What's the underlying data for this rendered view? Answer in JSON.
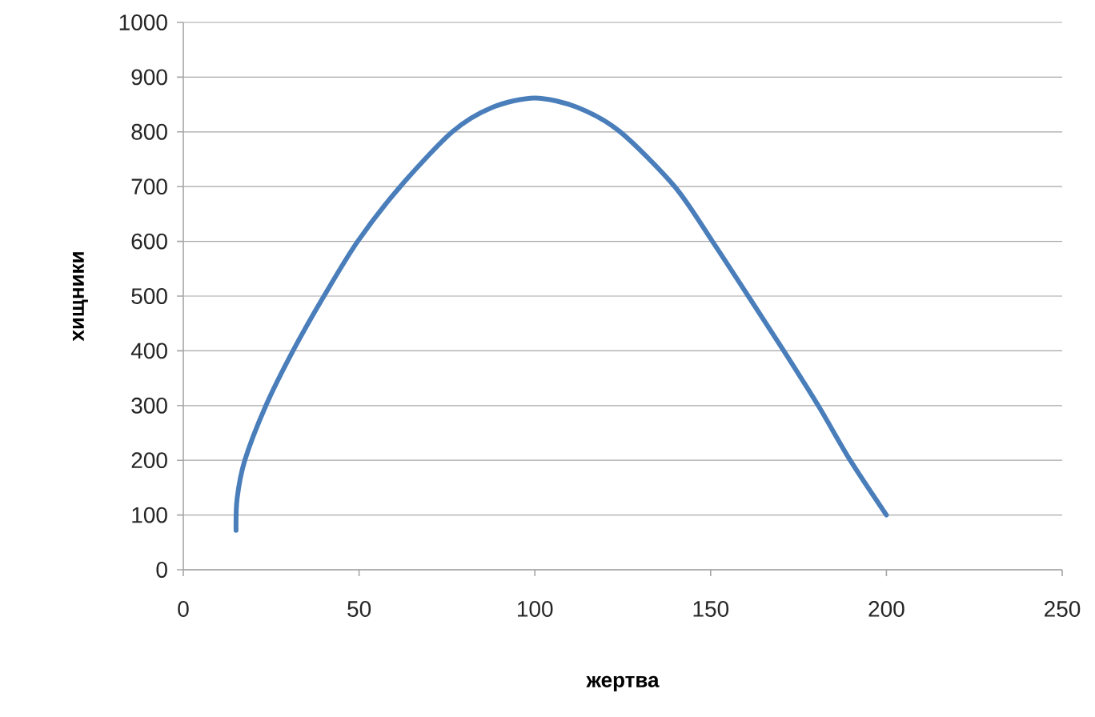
{
  "chart_data": {
    "type": "line",
    "xlabel": "жертва",
    "ylabel": "хищники",
    "series": [
      {
        "color": "#4a7ebb",
        "x": [
          15,
          15.3,
          17.5,
          23.5,
          31.2,
          40,
          49.6,
          61.7,
          76.5,
          88,
          100,
          112,
          124.3,
          139.8,
          150.5,
          160.7,
          170.8,
          180.6,
          189.7,
          200
        ],
        "values": [
          72,
          130,
          200,
          300,
          400,
          500,
          600,
          700,
          800,
          845,
          862,
          845,
          800,
          700,
          600,
          500,
          400,
          300,
          200,
          100
        ]
      }
    ],
    "xlim": [
      0,
      250
    ],
    "xticks": [
      0,
      50,
      100,
      150,
      200,
      250
    ],
    "ylim": [
      0,
      1000
    ],
    "yticks": [
      0,
      100,
      200,
      300,
      400,
      500,
      600,
      700,
      800,
      900,
      1000
    ],
    "grid": "y",
    "marker": "none",
    "line_style": "solid"
  }
}
